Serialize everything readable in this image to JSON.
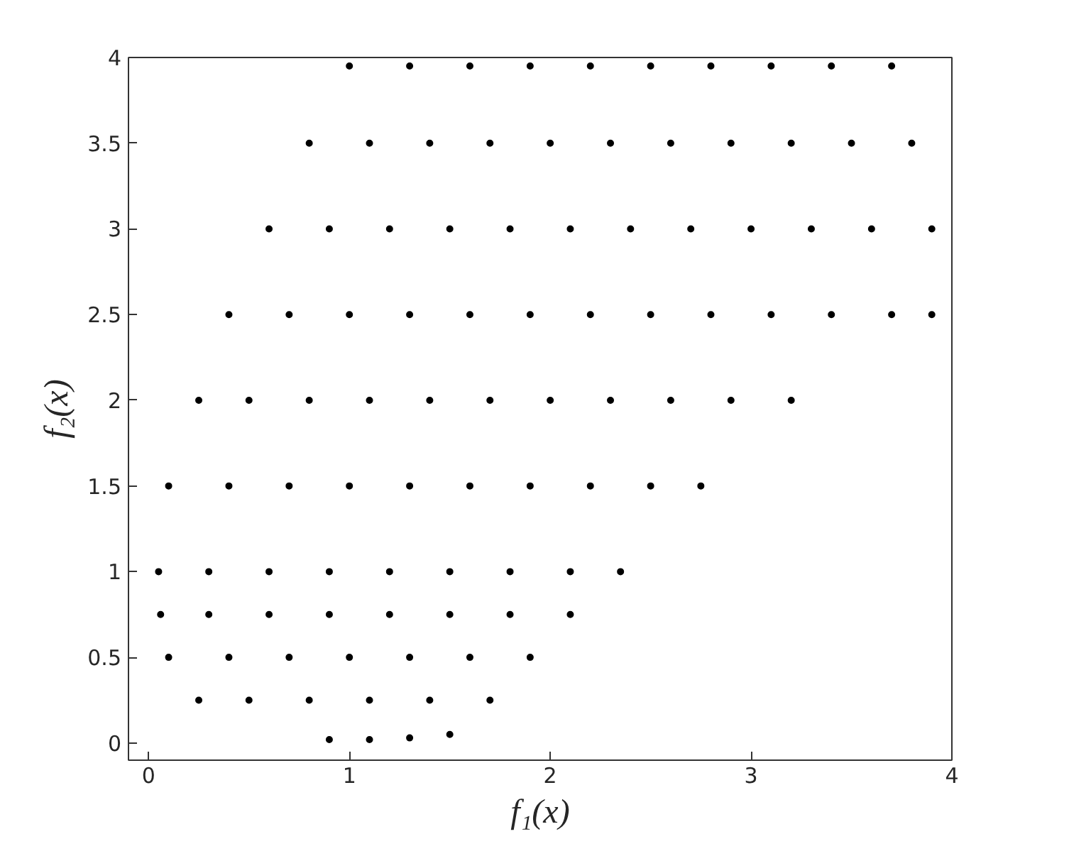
{
  "chart_data": {
    "type": "scatter",
    "xlabel": "f₁(x)",
    "ylabel": "f₂(x)",
    "xlim": [
      -0.1,
      4
    ],
    "ylim": [
      -0.1,
      4
    ],
    "xticks": [
      0,
      1,
      2,
      3,
      4
    ],
    "yticks": [
      0,
      0.5,
      1,
      1.5,
      2,
      2.5,
      3,
      3.5,
      4
    ],
    "grid": false,
    "marker": "circle",
    "series": [
      {
        "color": "#000000",
        "x": [
          0.9,
          1.1,
          1.3,
          1.5,
          0.25,
          0.5,
          0.8,
          1.1,
          1.4,
          1.7,
          0.1,
          0.4,
          0.7,
          1.0,
          1.3,
          1.6,
          1.9,
          0.06,
          0.3,
          0.6,
          0.9,
          1.2,
          1.5,
          1.8,
          2.1,
          0.05,
          0.3,
          0.6,
          0.9,
          1.2,
          1.5,
          1.8,
          2.1,
          2.35,
          0.1,
          0.4,
          0.7,
          1.0,
          1.3,
          1.6,
          1.9,
          2.2,
          2.5,
          2.75,
          0.25,
          0.5,
          0.8,
          1.1,
          1.4,
          1.7,
          2.0,
          2.3,
          2.6,
          2.9,
          3.2,
          0.4,
          0.7,
          1.0,
          1.3,
          1.6,
          1.9,
          2.2,
          2.5,
          2.8,
          3.1,
          3.4,
          3.7,
          3.9,
          0.6,
          0.9,
          1.2,
          1.5,
          1.8,
          2.1,
          2.4,
          2.7,
          3.0,
          3.3,
          3.6,
          3.9,
          0.8,
          1.1,
          1.4,
          1.7,
          2.0,
          2.3,
          2.6,
          2.9,
          3.2,
          3.5,
          3.8,
          1.0,
          1.3,
          1.6,
          1.9,
          2.2,
          2.5,
          2.8,
          3.1,
          3.4,
          3.7
        ],
        "values": [
          0.02,
          0.02,
          0.03,
          0.05,
          0.25,
          0.25,
          0.25,
          0.25,
          0.25,
          0.25,
          0.5,
          0.5,
          0.5,
          0.5,
          0.5,
          0.5,
          0.5,
          0.75,
          0.75,
          0.75,
          0.75,
          0.75,
          0.75,
          0.75,
          0.75,
          1,
          1,
          1,
          1,
          1,
          1,
          1,
          1,
          1,
          1.5,
          1.5,
          1.5,
          1.5,
          1.5,
          1.5,
          1.5,
          1.5,
          1.5,
          1.5,
          2,
          2,
          2,
          2,
          2,
          2,
          2,
          2,
          2,
          2,
          2,
          2.5,
          2.5,
          2.5,
          2.5,
          2.5,
          2.5,
          2.5,
          2.5,
          2.5,
          2.5,
          2.5,
          2.5,
          2.5,
          3,
          3,
          3,
          3,
          3,
          3,
          3,
          3,
          3,
          3,
          3,
          3,
          3.5,
          3.5,
          3.5,
          3.5,
          3.5,
          3.5,
          3.5,
          3.5,
          3.5,
          3.5,
          3.5,
          3.95,
          3.95,
          3.95,
          3.95,
          3.95,
          3.95,
          3.95,
          3.95,
          3.95,
          3.95
        ]
      }
    ]
  }
}
